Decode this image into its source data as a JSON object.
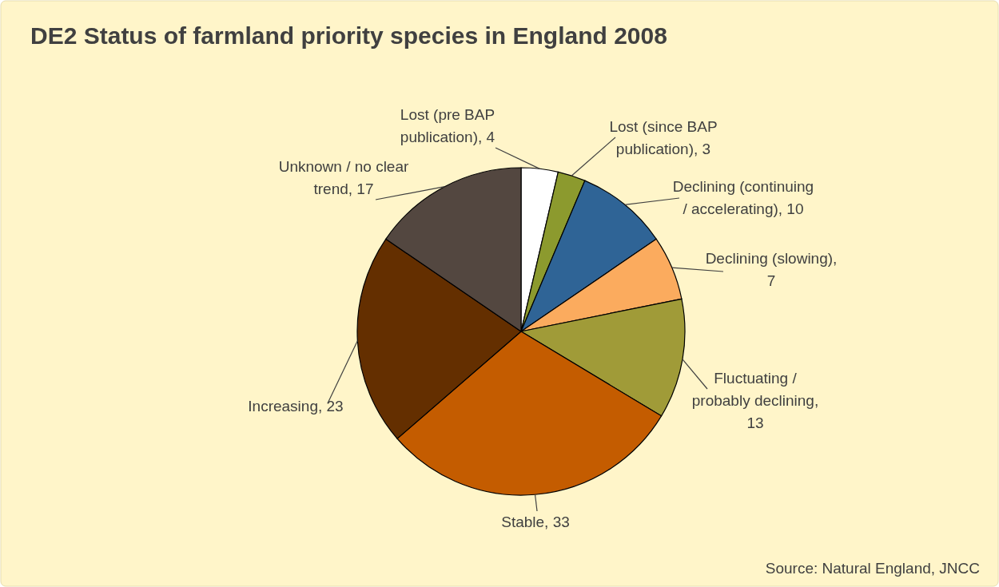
{
  "chart_data": {
    "type": "pie",
    "title": "DE2 Status of farmland priority species in England 2008",
    "categories": [
      "Lost (pre BAP publication)",
      "Lost (since BAP publication)",
      "Declining (continuing / accelerating)",
      "Declining (slowing)",
      "Fluctuating / probably declining",
      "Stable",
      "Increasing",
      "Unknown / no clear trend"
    ],
    "values": [
      4,
      3,
      10,
      7,
      13,
      33,
      23,
      17
    ],
    "colors": [
      "#ffffff",
      "#8c9a2e",
      "#2f6496",
      "#fbab5e",
      "#a09b38",
      "#c45c00",
      "#642f00",
      "#534740"
    ],
    "value_labels": [
      ", 4",
      ", 3",
      ", 10",
      ", 7",
      ", 13",
      ", 33",
      ", 23",
      ", 17"
    ],
    "annotations": [
      "Source: Natural England, JNCC"
    ]
  }
}
